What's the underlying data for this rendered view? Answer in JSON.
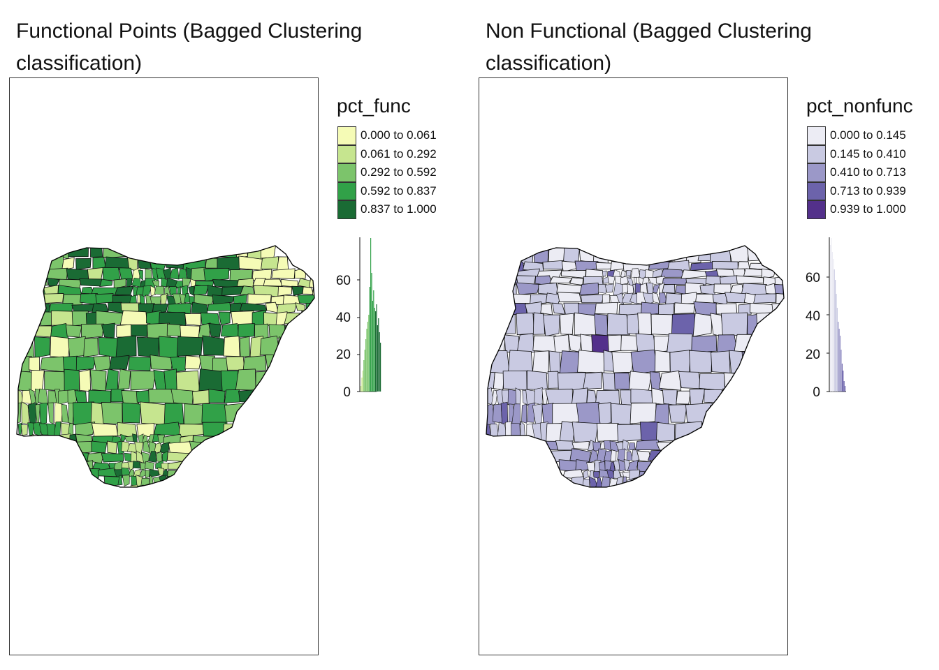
{
  "panels": [
    {
      "title": "Functional Points (Bagged Clustering classification)",
      "legend_title": "pct_func",
      "legend": [
        {
          "label": "0.000 to 0.061",
          "color": "#f5fbb6"
        },
        {
          "label": "0.061 to 0.292",
          "color": "#c6e58f"
        },
        {
          "label": "0.292 to 0.592",
          "color": "#7cc46b"
        },
        {
          "label": "0.592 to 0.837",
          "color": "#31a148"
        },
        {
          "label": "0.837 to 1.000",
          "color": "#1a6b34"
        }
      ],
      "histogram": {
        "y_ticks": [
          "0",
          "20",
          "40",
          "60"
        ]
      }
    },
    {
      "title": "Non Functional (Bagged Clustering classification)",
      "legend_title": "pct_nonfunc",
      "legend": [
        {
          "label": "0.000 to 0.145",
          "color": "#ececf4"
        },
        {
          "label": "0.145 to 0.410",
          "color": "#c9cae2"
        },
        {
          "label": "0.410 to 0.713",
          "color": "#9b98c8"
        },
        {
          "label": "0.713 to 0.939",
          "color": "#6c63ab"
        },
        {
          "label": "0.939 to 1.000",
          "color": "#53308b"
        }
      ],
      "histogram": {
        "y_ticks": [
          "0",
          "20",
          "40",
          "60"
        ]
      }
    }
  ]
}
